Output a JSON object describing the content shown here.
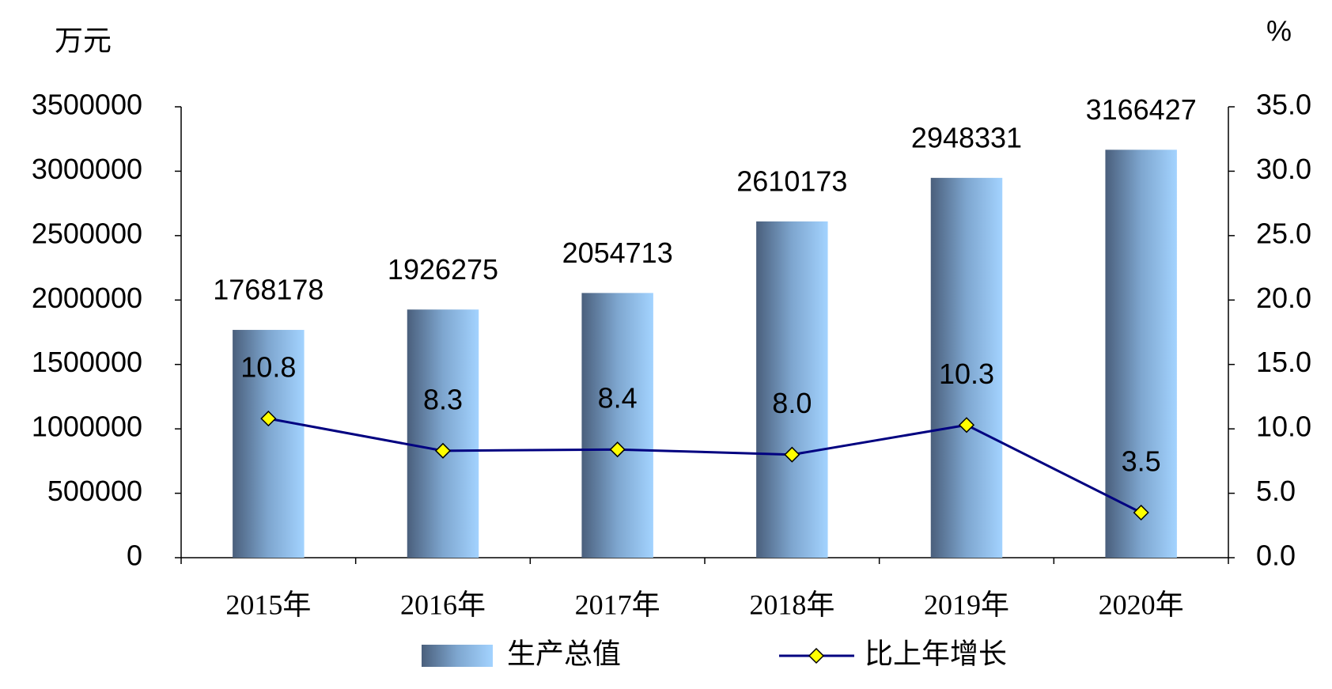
{
  "chart_data": {
    "type": "bar",
    "y_unit": "万元",
    "y2_unit": "%",
    "categories": [
      "2015年",
      "2016年",
      "2017年",
      "2018年",
      "2019年",
      "2020年"
    ],
    "series": [
      {
        "name": "生产总值",
        "type": "bar",
        "color": "#9dcdfa",
        "values": [
          1768178,
          1926275,
          2054713,
          2610173,
          2948331,
          3166427
        ]
      },
      {
        "name": "比上年增长",
        "type": "line",
        "axis": "y2",
        "color": "#000080",
        "marker_color": "#ffff00",
        "values": [
          10.8,
          8.3,
          8.4,
          8.0,
          10.3,
          3.5
        ],
        "value_labels": [
          "10.8",
          "8.3",
          "8.4",
          "8.0",
          "10.3",
          "3.5"
        ]
      }
    ],
    "ylim": [
      0,
      3500000
    ],
    "yticks": [
      0,
      500000,
      1000000,
      1500000,
      2000000,
      2500000,
      3000000,
      3500000
    ],
    "y2lim": [
      0,
      35
    ],
    "y2ticks": [
      {
        "value": 0,
        "label": "0.0"
      },
      {
        "value": 5,
        "label": "5.0"
      },
      {
        "value": 10,
        "label": "10.0"
      },
      {
        "value": 15,
        "label": "15.0"
      },
      {
        "value": 20,
        "label": "20.0"
      },
      {
        "value": 25,
        "label": "25.0"
      },
      {
        "value": 30,
        "label": "30.0"
      },
      {
        "value": 35,
        "label": "35.0"
      }
    ],
    "grid": false
  }
}
